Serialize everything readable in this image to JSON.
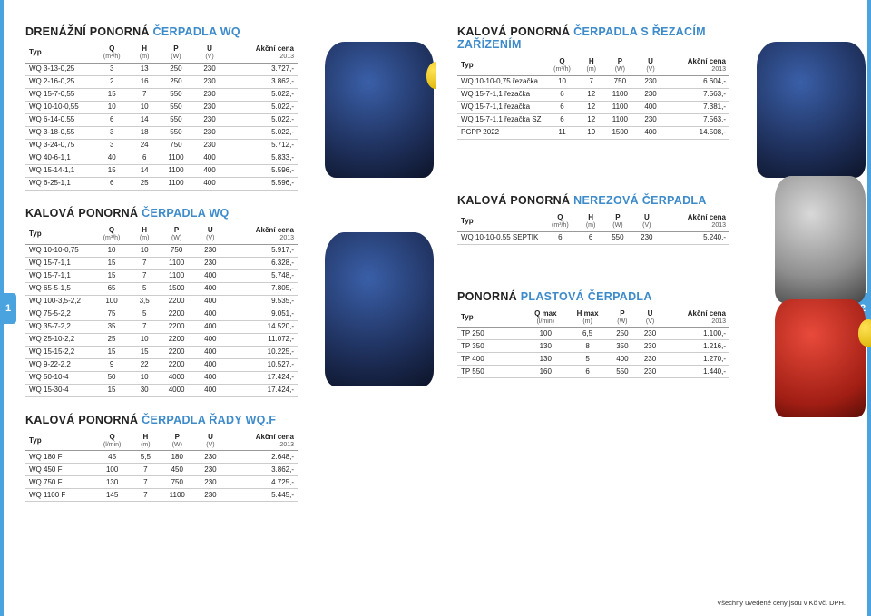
{
  "accent_color": "#3d8bca",
  "edge_color": "#4aa3df",
  "text_color": "#222",
  "footer_note": "Všechny uvedené ceny jsou v Kč vč. DPH.",
  "page_left_num": "1",
  "page_right_num": "2",
  "headers_flow": {
    "typ": "Typ",
    "q": "Q",
    "q_unit": "(m³/h)",
    "h": "H",
    "h_unit": "(m)",
    "p": "P",
    "p_unit": "(W)",
    "u": "U",
    "u_unit": "(V)",
    "price": "Akční cena",
    "price_year": "2013"
  },
  "headers_lmin": {
    "typ": "Typ",
    "q": "Q",
    "q_unit": "(l/min)",
    "h": "H",
    "h_unit": "(m)",
    "p": "P",
    "p_unit": "(W)",
    "u": "U",
    "u_unit": "(V)",
    "price": "Akční cena",
    "price_year": "2013"
  },
  "headers_qmax": {
    "typ": "Typ",
    "q": "Q max",
    "q_unit": "(l/min)",
    "h": "H max",
    "h_unit": "(m)",
    "p": "P",
    "p_unit": "(W)",
    "u": "U",
    "u_unit": "(V)",
    "price": "Akční cena",
    "price_year": "2013"
  },
  "sec1": {
    "title_black": "DRENÁŽNÍ PONORNÁ ",
    "title_accent": "ČERPADLA WQ",
    "rows": [
      [
        "WQ 3-13-0,25",
        "3",
        "13",
        "250",
        "230",
        "3.727,-"
      ],
      [
        "WQ 2-16-0,25",
        "2",
        "16",
        "250",
        "230",
        "3.862,-"
      ],
      [
        "WQ 15-7-0,55",
        "15",
        "7",
        "550",
        "230",
        "5.022,-"
      ],
      [
        "WQ 10-10-0,55",
        "10",
        "10",
        "550",
        "230",
        "5.022,-"
      ],
      [
        "WQ 6-14-0,55",
        "6",
        "14",
        "550",
        "230",
        "5.022,-"
      ],
      [
        "WQ 3-18-0,55",
        "3",
        "18",
        "550",
        "230",
        "5.022,-"
      ],
      [
        "WQ 3-24-0,75",
        "3",
        "24",
        "750",
        "230",
        "5.712,-"
      ],
      [
        "WQ 40-6-1,1",
        "40",
        "6",
        "1100",
        "400",
        "5.833,-"
      ],
      [
        "WQ 15-14-1,1",
        "15",
        "14",
        "1100",
        "400",
        "5.596,-"
      ],
      [
        "WQ 6-25-1,1",
        "6",
        "25",
        "1100",
        "400",
        "5.596,-"
      ]
    ]
  },
  "sec2": {
    "title_black": "KALOVÁ PONORNÁ ",
    "title_accent": "ČERPADLA WQ",
    "rows": [
      [
        "WQ 10-10-0,75",
        "10",
        "10",
        "750",
        "230",
        "5.917,-"
      ],
      [
        "WQ 15-7-1,1",
        "15",
        "7",
        "1100",
        "230",
        "6.328,-"
      ],
      [
        "WQ 15-7-1,1",
        "15",
        "7",
        "1100",
        "400",
        "5.748,-"
      ],
      [
        "WQ 65-5-1,5",
        "65",
        "5",
        "1500",
        "400",
        "7.805,-"
      ],
      [
        "WQ 100-3,5-2,2",
        "100",
        "3,5",
        "2200",
        "400",
        "9.535,-"
      ],
      [
        "WQ 75-5-2,2",
        "75",
        "5",
        "2200",
        "400",
        "9.051,-"
      ],
      [
        "WQ 35-7-2,2",
        "35",
        "7",
        "2200",
        "400",
        "14.520,-"
      ],
      [
        "WQ 25-10-2,2",
        "25",
        "10",
        "2200",
        "400",
        "11.072,-"
      ],
      [
        "WQ 15-15-2,2",
        "15",
        "15",
        "2200",
        "400",
        "10.225,-"
      ],
      [
        "WQ 9-22-2,2",
        "9",
        "22",
        "2200",
        "400",
        "10.527,-"
      ],
      [
        "WQ 50-10-4",
        "50",
        "10",
        "4000",
        "400",
        "17.424,-"
      ],
      [
        "WQ 15-30-4",
        "15",
        "30",
        "4000",
        "400",
        "17.424,-"
      ]
    ]
  },
  "sec3": {
    "title_black": "KALOVÁ PONORNÁ ",
    "title_accent": "ČERPADLA ŘADY WQ.F",
    "rows": [
      [
        "WQ 180 F",
        "45",
        "5,5",
        "180",
        "230",
        "2.648,-"
      ],
      [
        "WQ 450 F",
        "100",
        "7",
        "450",
        "230",
        "3.862,-"
      ],
      [
        "WQ 750 F",
        "130",
        "7",
        "750",
        "230",
        "4.725,-"
      ],
      [
        "WQ 1100 F",
        "145",
        "7",
        "1100",
        "230",
        "5.445,-"
      ]
    ]
  },
  "sec4": {
    "title_black": "KALOVÁ PONORNÁ ",
    "title_accent": "ČERPADLA S ŘEZACÍM ZAŘÍZENÍM",
    "rows": [
      [
        "WQ 10-10-0,75 řezačka",
        "10",
        "7",
        "750",
        "230",
        "6.604,-"
      ],
      [
        "WQ 15-7-1,1 řezačka",
        "6",
        "12",
        "1100",
        "230",
        "7.563,-"
      ],
      [
        "WQ 15-7-1,1 řezačka",
        "6",
        "12",
        "1100",
        "400",
        "7.381,-"
      ],
      [
        "WQ 15-7-1,1 řezačka SZ",
        "6",
        "12",
        "1100",
        "230",
        "7.563,-"
      ],
      [
        "PGPP 2022",
        "11",
        "19",
        "1500",
        "400",
        "14.508,-"
      ]
    ]
  },
  "sec5": {
    "title_black": "KALOVÁ PONORNÁ ",
    "title_accent": "NEREZOVÁ ČERPADLA",
    "rows": [
      [
        "WQ 10-10-0,55 SEPTIK",
        "6",
        "6",
        "550",
        "230",
        "5.240,-"
      ]
    ]
  },
  "sec6": {
    "title_black": "PONORNÁ ",
    "title_accent": "PLASTOVÁ ČERPADLA",
    "rows": [
      [
        "TP 250",
        "100",
        "6,5",
        "250",
        "230",
        "1.100,-"
      ],
      [
        "TP 350",
        "130",
        "8",
        "350",
        "230",
        "1.216,-"
      ],
      [
        "TP 400",
        "130",
        "5",
        "400",
        "230",
        "1.270,-"
      ],
      [
        "TP 550",
        "160",
        "6",
        "550",
        "230",
        "1.440,-"
      ]
    ]
  }
}
